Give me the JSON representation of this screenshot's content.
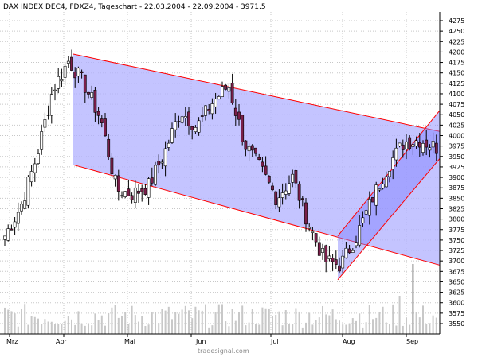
{
  "header": {
    "title_prefix": "DAX INDEX DEC4",
    "title_rest": ", FDXZ4, Tageschart - 22.03.2004 - 22.09.2004 - 3971.5"
  },
  "watermark": "tradesignal.com",
  "colors": {
    "background": "#ffffff",
    "grid": "#c7c7c7",
    "channel_fill": "#b0b0ff",
    "channel_line": "#ff0000",
    "candle_up": "#ffffff",
    "candle_down": "#7a1f4a",
    "candle_outline": "#000000",
    "volume_bar": "#c8c8c8",
    "volume_spike": "#8f8f8f"
  },
  "chart_data": {
    "type": "candlestick",
    "title": "DAX INDEX DEC4 , FDXZ4, Tageschart - 22.03.2004 - 22.09.2004 - 3971.5",
    "x_labels": [
      "Mrz",
      "Apr",
      "Mai",
      "Jun",
      "Jul",
      "Aug",
      "Sep"
    ],
    "y_ticks": [
      3550,
      3575,
      3600,
      3625,
      3650,
      3675,
      3700,
      3725,
      3750,
      3775,
      3800,
      3825,
      3850,
      3875,
      3900,
      3925,
      3950,
      3975,
      4000,
      4025,
      4050,
      4075,
      4100,
      4125,
      4150,
      4175,
      4200,
      4225,
      4250,
      4275
    ],
    "ylim": [
      3540,
      4285
    ],
    "grid": true,
    "last_value": 3971.5,
    "series": [
      {
        "name": "Close",
        "x": [
          "22.03",
          "26.03",
          "01.04",
          "08.04",
          "16.04",
          "23.04",
          "30.04",
          "07.05",
          "14.05",
          "21.05",
          "28.05",
          "04.06",
          "11.06",
          "18.06",
          "25.06",
          "02.07",
          "09.07",
          "16.07",
          "23.07",
          "30.07",
          "06.08",
          "13.08",
          "20.08",
          "27.08",
          "03.09",
          "10.09",
          "17.09",
          "22.09"
        ],
        "values": [
          3760,
          3830,
          3950,
          4110,
          4180,
          4120,
          4040,
          3870,
          3860,
          3880,
          3960,
          4060,
          4020,
          4080,
          4120,
          3980,
          3920,
          3850,
          3900,
          3790,
          3700,
          3690,
          3760,
          3850,
          3930,
          3985,
          3990,
          3971.5
        ]
      }
    ],
    "channels": [
      {
        "name": "downtrend channel",
        "upper": [
          [
            "05.04",
            4195
          ],
          [
            "22.09",
            4010
          ]
        ],
        "lower": [
          [
            "05.04",
            3930
          ],
          [
            "22.09",
            3690
          ]
        ]
      },
      {
        "name": "uptrend channel",
        "upper": [
          [
            "02.08",
            3760
          ],
          [
            "22.09",
            4060
          ]
        ],
        "lower": [
          [
            "02.08",
            3655
          ],
          [
            "22.09",
            3945
          ]
        ]
      }
    ]
  }
}
